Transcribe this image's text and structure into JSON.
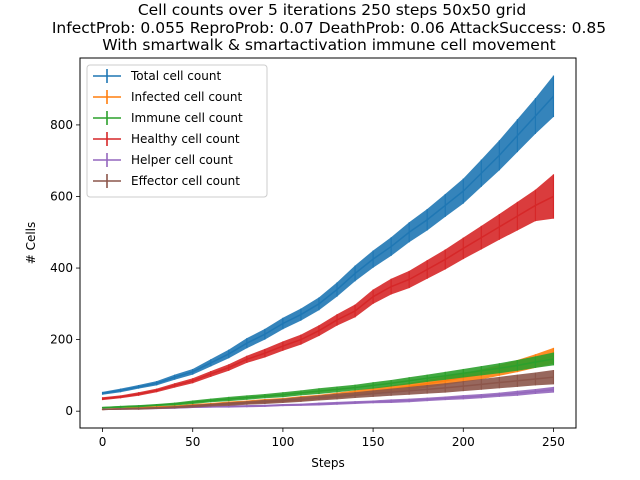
{
  "chart_data": {
    "type": "line",
    "title_lines": [
      "Cell counts over 5 iterations 250 steps 50x50 grid",
      "InfectProb: 0.055 ReproProb: 0.07 DeathProb: 0.06 AttackSuccess: 0.85",
      "With smartwalk & smartactivation immune cell movement"
    ],
    "xlabel": "Steps",
    "ylabel": "# Cells",
    "xlim": [
      -12.5,
      262.5
    ],
    "ylim": [
      -47,
      987
    ],
    "xticks": [
      0,
      50,
      100,
      150,
      200,
      250
    ],
    "yticks": [
      0,
      200,
      400,
      600,
      800
    ],
    "grid": false,
    "legend_position": "upper-left",
    "error_bars": true,
    "series": [
      {
        "name": "Total cell count",
        "color": "#1f77b4",
        "x": [
          0,
          10,
          20,
          30,
          40,
          50,
          60,
          70,
          80,
          90,
          100,
          110,
          120,
          130,
          140,
          150,
          160,
          170,
          180,
          190,
          200,
          210,
          220,
          230,
          240,
          250
        ],
        "y": [
          50,
          58,
          68,
          78,
          95,
          110,
          135,
          160,
          190,
          215,
          245,
          270,
          300,
          340,
          385,
          425,
          460,
          500,
          535,
          575,
          615,
          665,
          715,
          770,
          825,
          880
        ],
        "err": [
          4,
          5,
          5,
          6,
          7,
          8,
          10,
          12,
          14,
          15,
          16,
          17,
          18,
          20,
          22,
          24,
          26,
          28,
          30,
          32,
          35,
          38,
          42,
          46,
          50,
          58
        ]
      },
      {
        "name": "Infected cell count",
        "color": "#ff7f0e",
        "x": [
          0,
          10,
          20,
          30,
          40,
          50,
          60,
          70,
          80,
          90,
          100,
          110,
          120,
          130,
          140,
          150,
          160,
          170,
          180,
          190,
          200,
          210,
          220,
          230,
          240,
          250
        ],
        "y": [
          5,
          7,
          9,
          11,
          13,
          16,
          19,
          22,
          25,
          28,
          31,
          35,
          39,
          44,
          50,
          56,
          62,
          69,
          77,
          85,
          94,
          103,
          114,
          126,
          140,
          155
        ],
        "err": [
          2,
          2,
          3,
          3,
          3,
          4,
          4,
          5,
          5,
          6,
          6,
          7,
          7,
          8,
          8,
          9,
          10,
          10,
          11,
          12,
          13,
          14,
          15,
          17,
          19,
          22
        ]
      },
      {
        "name": "Immune cell count",
        "color": "#2ca02c",
        "x": [
          0,
          10,
          20,
          30,
          40,
          50,
          60,
          70,
          80,
          90,
          100,
          110,
          120,
          130,
          140,
          150,
          160,
          170,
          180,
          190,
          200,
          210,
          220,
          230,
          240,
          250
        ],
        "y": [
          10,
          12,
          14,
          17,
          20,
          25,
          30,
          34,
          38,
          42,
          46,
          51,
          56,
          61,
          66,
          72,
          78,
          85,
          92,
          99,
          106,
          113,
          120,
          128,
          137,
          146
        ],
        "err": [
          2,
          3,
          3,
          3,
          4,
          5,
          5,
          6,
          6,
          6,
          7,
          7,
          8,
          8,
          8,
          9,
          9,
          10,
          10,
          11,
          12,
          13,
          14,
          15,
          16,
          18
        ]
      },
      {
        "name": "Healthy cell count",
        "color": "#d62728",
        "x": [
          0,
          10,
          20,
          30,
          40,
          50,
          60,
          70,
          80,
          90,
          100,
          110,
          120,
          130,
          140,
          150,
          160,
          170,
          180,
          190,
          200,
          210,
          220,
          230,
          240,
          250
        ],
        "y": [
          35,
          40,
          48,
          58,
          72,
          85,
          104,
          122,
          145,
          162,
          182,
          200,
          225,
          255,
          280,
          320,
          348,
          368,
          396,
          424,
          455,
          485,
          515,
          545,
          575,
          600
        ],
        "err": [
          4,
          4,
          5,
          5,
          6,
          7,
          8,
          9,
          10,
          12,
          13,
          14,
          15,
          16,
          18,
          20,
          22,
          24,
          26,
          28,
          30,
          33,
          36,
          40,
          44,
          62
        ]
      },
      {
        "name": "Helper cell count",
        "color": "#9467bd",
        "x": [
          0,
          10,
          20,
          30,
          40,
          50,
          60,
          70,
          80,
          90,
          100,
          110,
          120,
          130,
          140,
          150,
          160,
          170,
          180,
          190,
          200,
          210,
          220,
          230,
          240,
          250
        ],
        "y": [
          5,
          6,
          7,
          8,
          9,
          11,
          12,
          13,
          14,
          15,
          17,
          18,
          20,
          22,
          24,
          26,
          28,
          30,
          33,
          36,
          39,
          42,
          46,
          50,
          55,
          60
        ],
        "err": [
          1,
          1,
          2,
          2,
          2,
          2,
          2,
          3,
          3,
          3,
          3,
          3,
          4,
          4,
          4,
          4,
          5,
          5,
          5,
          5,
          6,
          6,
          6,
          7,
          7,
          8
        ]
      },
      {
        "name": "Effector cell count",
        "color": "#8c564b",
        "x": [
          0,
          10,
          20,
          30,
          40,
          50,
          60,
          70,
          80,
          90,
          100,
          110,
          120,
          130,
          140,
          150,
          160,
          170,
          180,
          190,
          200,
          210,
          220,
          230,
          240,
          250
        ],
        "y": [
          5,
          6,
          7,
          9,
          11,
          14,
          17,
          20,
          23,
          26,
          29,
          33,
          37,
          41,
          45,
          49,
          53,
          57,
          61,
          65,
          70,
          75,
          80,
          85,
          90,
          95
        ],
        "err": [
          2,
          2,
          3,
          3,
          3,
          4,
          4,
          5,
          5,
          6,
          6,
          7,
          7,
          8,
          8,
          9,
          10,
          11,
          12,
          13,
          14,
          15,
          16,
          17,
          18,
          20
        ]
      }
    ]
  }
}
